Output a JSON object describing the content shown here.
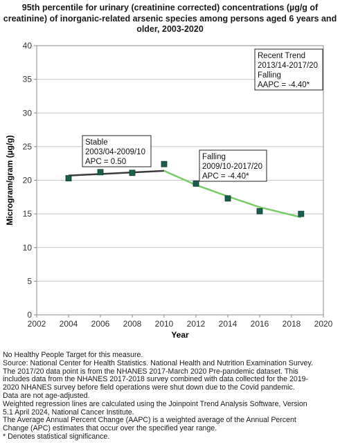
{
  "title_lines": [
    "95th percentile for urinary (creatinine corrected) concentrations (µg/g of",
    "creatinine) of inorganic-related arsenic species among persons aged 6 years and",
    "older, 2003-2020"
  ],
  "chart_data": {
    "type": "scatter",
    "xlabel": "Year",
    "ylabel": "Microgram/gram (µg/g)",
    "xlim": [
      2002,
      2020
    ],
    "ylim": [
      0,
      40
    ],
    "x_ticks": [
      "2002",
      "2004",
      "2006",
      "2008",
      "2010",
      "2012",
      "2014",
      "2016",
      "2018",
      "2020"
    ],
    "y_ticks": [
      "0",
      "5",
      "10",
      "15",
      "20",
      "25",
      "30",
      "35",
      "40"
    ],
    "grid": "horizontal",
    "points": [
      {
        "x": 2004,
        "y": 20.3
      },
      {
        "x": 2006,
        "y": 21.2
      },
      {
        "x": 2008,
        "y": 21.1
      },
      {
        "x": 2010,
        "y": 22.4
      },
      {
        "x": 2012,
        "y": 19.5
      },
      {
        "x": 2014,
        "y": 17.3
      },
      {
        "x": 2016,
        "y": 15.4
      },
      {
        "x": 2018.6,
        "y": 15.0
      }
    ],
    "point_color": "#1a5e4e",
    "trend_segments": [
      {
        "x": [
          2004,
          2010
        ],
        "y": [
          20.7,
          21.4
        ],
        "color": "#3a3a3a"
      },
      {
        "x": [
          2010,
          2012,
          2014,
          2016,
          2018.6
        ],
        "y": [
          21.4,
          19.3,
          17.6,
          16.0,
          14.5
        ],
        "color": "#77cc66"
      }
    ],
    "annotations": [
      {
        "lines": [
          "Stable",
          "2003/04-2009/10",
          "APC =  0.50"
        ]
      },
      {
        "lines": [
          "Falling",
          "2009/10-2017/20",
          "APC = -4.40*"
        ]
      },
      {
        "lines": [
          "Recent Trend",
          "2013/14-2017/20",
          "Falling",
          "AAPC = -4.40*"
        ]
      }
    ]
  },
  "footnotes": [
    "No Healthy People Target for this measure.",
    "Source: National Center for Health Statistics. National Health and Nutrition Examination Survey.",
    "The 2017/20 data point is from the NHANES 2017-March 2020 Pre-pandemic dataset. This",
    "includes data from the NHANES 2017-2018 survey combined with data collected for the 2019-",
    "2020 NHANES survey before field operations were shut down due to the Covid pandemic.",
    "Data are not age-adjusted.",
    "Weighted regression lines are calculated using the Joinpoint Trend Analysis Software, Version",
    "5.1 April 2024, National Cancer Institute.",
    "The Average Annual Percent Change (AAPC) is a weighted average of the Annual Percent",
    "Change (APC) estimates that occur over the specified year range.",
    "* Denotes statistical significance."
  ]
}
